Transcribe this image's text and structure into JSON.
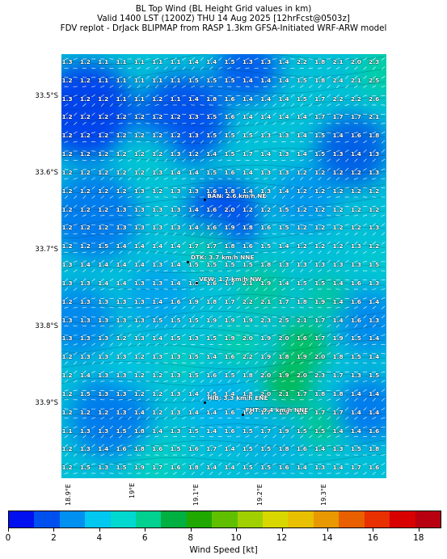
{
  "title": {
    "line1": "BL Top Wind (BL Height Grid values in km)",
    "line2": "Valid 1400 LST (1200Z) THU 14 Aug 2025 [12hrFcst@0503z]",
    "line3": "FDV replot - DrJack BLIPMAP from RASP 1.3km GFSA-Initiated WRF-ARW model"
  },
  "latitude_labels": [
    "33.5°S",
    "33.6°S",
    "33.7°S",
    "33.8°S",
    "33.9°S"
  ],
  "longitude_labels": [
    "18.9°E",
    "19°E",
    "19.1°E",
    "19.2°E",
    "19.3°E"
  ],
  "colorbar": {
    "label": "Wind Speed [kt]",
    "ticks": [
      "0",
      "2",
      "4",
      "6",
      "8",
      "10",
      "12",
      "14",
      "16",
      "18"
    ],
    "colors": [
      "#0010f0",
      "#0050f0",
      "#0090f0",
      "#00c8f0",
      "#00d8d0",
      "#00d090",
      "#00b040",
      "#20a800",
      "#60c000",
      "#a0d000",
      "#d8d800",
      "#e8c000",
      "#e89800",
      "#e86000",
      "#e83000",
      "#d80000",
      "#b80010"
    ]
  },
  "grid_values": [
    [
      "1.3",
      "1.2",
      "1.1",
      "1.1",
      "1.1",
      "1.1",
      "1.1",
      "1.4",
      "1.4",
      "1.5",
      "1.3",
      "1.3",
      "1.4",
      "2.2",
      "1.8",
      "2.1",
      "2.0",
      "2.3"
    ],
    [
      "1.2",
      "1.2",
      "1.1",
      "1.1",
      "1.1",
      "1.1",
      "1.1",
      "1.5",
      "1.5",
      "1.5",
      "1.4",
      "1.4",
      "1.4",
      "1.5",
      "1.8",
      "2.4",
      "2.1",
      "2.5"
    ],
    [
      "1.3",
      "1.2",
      "1.2",
      "1.1",
      "1.1",
      "1.2",
      "1.1",
      "1.4",
      "1.8",
      "1.6",
      "1.4",
      "1.4",
      "1.4",
      "1.5",
      "1.7",
      "2.2",
      "2.2",
      "2.6"
    ],
    [
      "1.2",
      "1.2",
      "1.2",
      "1.2",
      "1.2",
      "1.2",
      "1.2",
      "1.3",
      "1.5",
      "1.6",
      "1.4",
      "1.4",
      "1.4",
      "1.4",
      "1.7",
      "1.7",
      "1.7",
      "2.1"
    ],
    [
      "1.2",
      "1.2",
      "1.2",
      "1.2",
      "1.2",
      "1.2",
      "1.2",
      "1.3",
      "1.5",
      "1.5",
      "1.5",
      "1.3",
      "1.3",
      "1.4",
      "1.5",
      "1.4",
      "1.6",
      "1.8"
    ],
    [
      "1.2",
      "1.2",
      "1.2",
      "1.2",
      "1.2",
      "1.2",
      "1.3",
      "1.2",
      "1.4",
      "1.5",
      "1.7",
      "1.4",
      "1.3",
      "1.4",
      "1.5",
      "1.3",
      "1.4",
      "1.3"
    ],
    [
      "1.2",
      "1.2",
      "1.2",
      "1.2",
      "1.2",
      "1.3",
      "1.4",
      "1.4",
      "1.5",
      "1.6",
      "1.4",
      "1.3",
      "1.3",
      "1.2",
      "1.2",
      "1.2",
      "1.2",
      "1.3"
    ],
    [
      "1.2",
      "1.2",
      "1.2",
      "1.2",
      "1.3",
      "1.2",
      "1.3",
      "1.3",
      "1.6",
      "1.8",
      "1.4",
      "1.3",
      "1.4",
      "1.2",
      "1.2",
      "1.2",
      "1.2",
      "1.2"
    ],
    [
      "1.2",
      "1.2",
      "1.2",
      "1.3",
      "1.3",
      "1.3",
      "1.3",
      "1.4",
      "1.6",
      "2.0",
      "1.2",
      "1.2",
      "1.5",
      "1.2",
      "1.2",
      "1.2",
      "1.2",
      "1.2"
    ],
    [
      "1.2",
      "1.2",
      "1.2",
      "1.3",
      "1.3",
      "1.3",
      "1.3",
      "1.4",
      "1.6",
      "1.9",
      "1.8",
      "1.6",
      "1.5",
      "1.2",
      "1.2",
      "1.2",
      "1.2",
      "1.3"
    ],
    [
      "1.2",
      "1.2",
      "1.5",
      "1.4",
      "1.4",
      "1.4",
      "1.4",
      "1.7",
      "1.7",
      "1.8",
      "1.6",
      "1.5",
      "1.4",
      "1.2",
      "1.2",
      "1.2",
      "1.3",
      "1.2"
    ],
    [
      "1.3",
      "1.4",
      "1.4",
      "1.4",
      "1.4",
      "1.3",
      "1.4",
      "1.5",
      "1.5",
      "1.5",
      "1.5",
      "1.8",
      "1.3",
      "1.3",
      "1.3",
      "1.3",
      "1.3",
      "1.5"
    ],
    [
      "1.3",
      "1.3",
      "1.4",
      "1.4",
      "1.3",
      "1.3",
      "1.4",
      "1.8",
      "1.6",
      "1.7",
      "2.1",
      "1.9",
      "1.4",
      "1.5",
      "1.5",
      "1.4",
      "1.6",
      "1.3"
    ],
    [
      "1.2",
      "1.3",
      "1.3",
      "1.3",
      "1.3",
      "1.4",
      "1.6",
      "1.9",
      "1.8",
      "1.7",
      "2.2",
      "2.1",
      "1.7",
      "1.8",
      "1.9",
      "1.4",
      "1.6",
      "1.4"
    ],
    [
      "1.3",
      "1.3",
      "1.3",
      "1.3",
      "1.3",
      "1.5",
      "1.5",
      "1.5",
      "1.9",
      "1.9",
      "1.9",
      "2.3",
      "2.5",
      "2.1",
      "1.7",
      "1.4",
      "1.6",
      "1.3"
    ],
    [
      "1.3",
      "1.3",
      "1.3",
      "1.2",
      "1.3",
      "1.4",
      "1.5",
      "1.3",
      "1.5",
      "1.9",
      "2.0",
      "1.9",
      "2.0",
      "1.6",
      "1.7",
      "1.9",
      "1.5",
      "1.4"
    ],
    [
      "1.2",
      "1.3",
      "1.3",
      "1.3",
      "1.2",
      "1.3",
      "1.3",
      "1.5",
      "1.4",
      "1.6",
      "2.2",
      "1.9",
      "1.8",
      "1.9",
      "2.0",
      "1.8",
      "1.5",
      "1.4"
    ],
    [
      "1.2",
      "1.4",
      "1.3",
      "1.3",
      "1.2",
      "1.2",
      "1.3",
      "1.5",
      "1.6",
      "1.5",
      "1.8",
      "2.0",
      "1.9",
      "2.0",
      "2.3",
      "1.7",
      "1.3",
      "1.5"
    ],
    [
      "1.2",
      "1.5",
      "1.3",
      "1.3",
      "1.2",
      "1.2",
      "1.3",
      "1.4",
      "1.5",
      "1.4",
      "1.8",
      "2.0",
      "2.1",
      "1.7",
      "1.8",
      "1.8",
      "1.4",
      "1.4"
    ],
    [
      "1.2",
      "1.2",
      "1.2",
      "1.3",
      "1.4",
      "1.2",
      "1.3",
      "1.4",
      "1.4",
      "1.6",
      "1.6",
      "1.7",
      "1.9",
      "1.4",
      "1.7",
      "1.7",
      "1.4",
      "1.4"
    ],
    [
      "1.1",
      "1.3",
      "1.3",
      "1.5",
      "1.8",
      "1.4",
      "1.3",
      "1.5",
      "1.4",
      "1.6",
      "1.5",
      "1.7",
      "1.9",
      "1.5",
      "1.5",
      "1.4",
      "1.4",
      "1.6"
    ],
    [
      "1.2",
      "1.3",
      "1.4",
      "1.6",
      "1.8",
      "1.6",
      "1.5",
      "1.6",
      "1.7",
      "1.4",
      "1.5",
      "1.5",
      "1.8",
      "1.6",
      "1.4",
      "1.3",
      "1.5",
      "1.8"
    ],
    [
      "1.2",
      "1.5",
      "1.3",
      "1.5",
      "1.9",
      "1.7",
      "1.6",
      "1.8",
      "1.4",
      "1.4",
      "1.5",
      "1.5",
      "1.6",
      "1.4",
      "1.3",
      "1.4",
      "1.7",
      "1.6"
    ]
  ],
  "sites": [
    {
      "label": "BAN: 2.6 km/h NE",
      "lon": 19.098,
      "lat": -33.616
    },
    {
      "label": "DTK: 3.7 km/h NNE",
      "lon": 19.072,
      "lat": -33.697
    },
    {
      "label": "VEW: 1.7 km/h NW",
      "lon": 19.085,
      "lon_note": "",
      "lat": -33.725
    },
    {
      "label": "HIB: 3.3 km/h ENE",
      "lon": 19.098,
      "lat": -33.881
    },
    {
      "label": "FHT: 9.4 km/h NNE",
      "lon": 19.158,
      "lat": -33.897
    }
  ]
}
